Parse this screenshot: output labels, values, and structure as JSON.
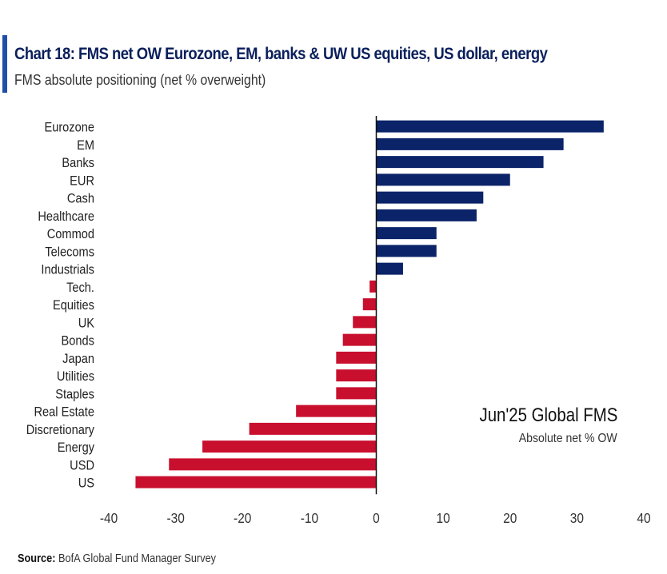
{
  "chart_data": {
    "type": "bar",
    "orientation": "horizontal",
    "title": "Chart 18: FMS net OW Eurozone, EM, banks & UW US equities, US dollar, energy",
    "subtitle": "FMS absolute positioning (net % overweight)",
    "categories": [
      "Eurozone",
      "EM",
      "Banks",
      "EUR",
      "Cash",
      "Healthcare",
      "Commod",
      "Telecoms",
      "Industrials",
      "Tech.",
      "Equities",
      "UK",
      "Bonds",
      "Japan",
      "Utilities",
      "Staples",
      "Real Estate",
      "Discretionary",
      "Energy",
      "USD",
      "US"
    ],
    "values": [
      34,
      28,
      25,
      20,
      16,
      15,
      9,
      9,
      4,
      -1,
      -2,
      -3.5,
      -5,
      -6,
      -6,
      -6,
      -12,
      -19,
      -26,
      -31,
      -36
    ],
    "xlim": [
      -40,
      40
    ],
    "xticks": [
      -40,
      -30,
      -20,
      -10,
      0,
      10,
      20,
      30,
      40
    ],
    "annotation_title": "Jun'25 Global FMS",
    "annotation_sub": "Absolute net % OW",
    "grid": false,
    "colors": {
      "positive": "#0a2369",
      "negative": "#c8102e",
      "accent": "#1f4fa8"
    }
  },
  "source_label": "Source:",
  "source_text": "BofA Global Fund Manager Survey"
}
